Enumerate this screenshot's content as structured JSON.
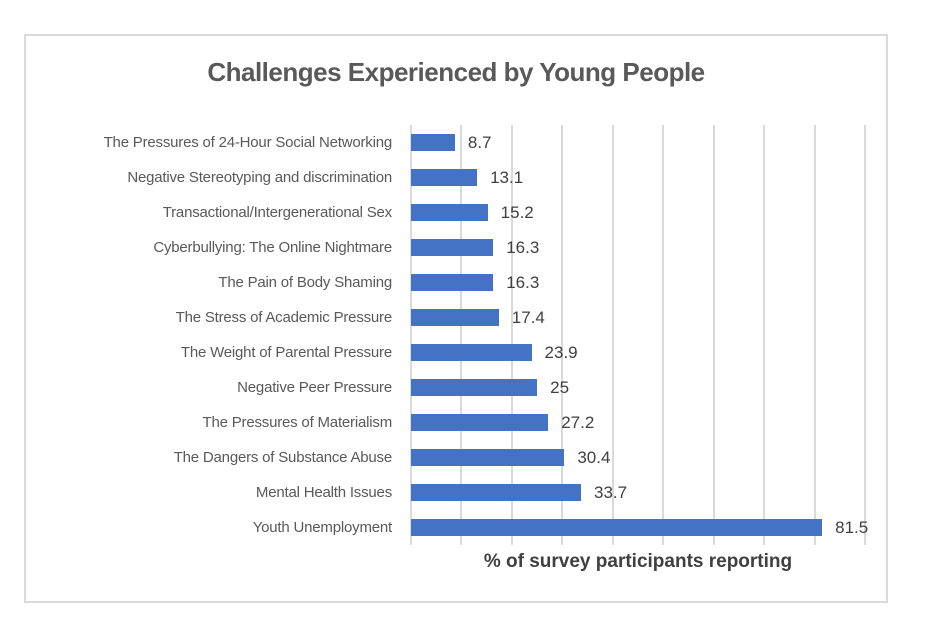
{
  "chart_data": {
    "type": "bar",
    "orientation": "horizontal",
    "title": "Challenges Experienced by Young People",
    "xlabel": "% of survey participants reporting",
    "categories": [
      "The Pressures of 24-Hour Social Networking",
      "Negative Stereotyping and discrimination",
      "Transactional/Intergenerational Sex",
      "Cyberbullying: The Online Nightmare",
      "The Pain of Body Shaming",
      "The Stress of Academic Pressure",
      "The Weight of Parental Pressure",
      "Negative Peer Pressure",
      "The Pressures of Materialism",
      "The Dangers of Substance Abuse",
      "Mental Health Issues",
      "Youth Unemployment"
    ],
    "values": [
      8.7,
      13.1,
      15.2,
      16.3,
      16.3,
      17.4,
      23.9,
      25,
      27.2,
      30.4,
      33.7,
      81.5
    ],
    "value_labels": [
      "8.7",
      "13.1",
      "15.2",
      "16.3",
      "16.3",
      "17.4",
      "23.9",
      "25",
      "27.2",
      "30.4",
      "33.7",
      "81.5"
    ],
    "xlim": [
      0,
      90
    ],
    "gridline_interval": 10,
    "grid": true,
    "x_tick_labels_shown": false,
    "legend": false
  },
  "colors": {
    "bar": "#4472c4",
    "gridline": "#d9d9d9",
    "frame_border": "#d9d9d9",
    "title_text": "#595959",
    "category_text": "#595959",
    "value_text": "#404040"
  }
}
